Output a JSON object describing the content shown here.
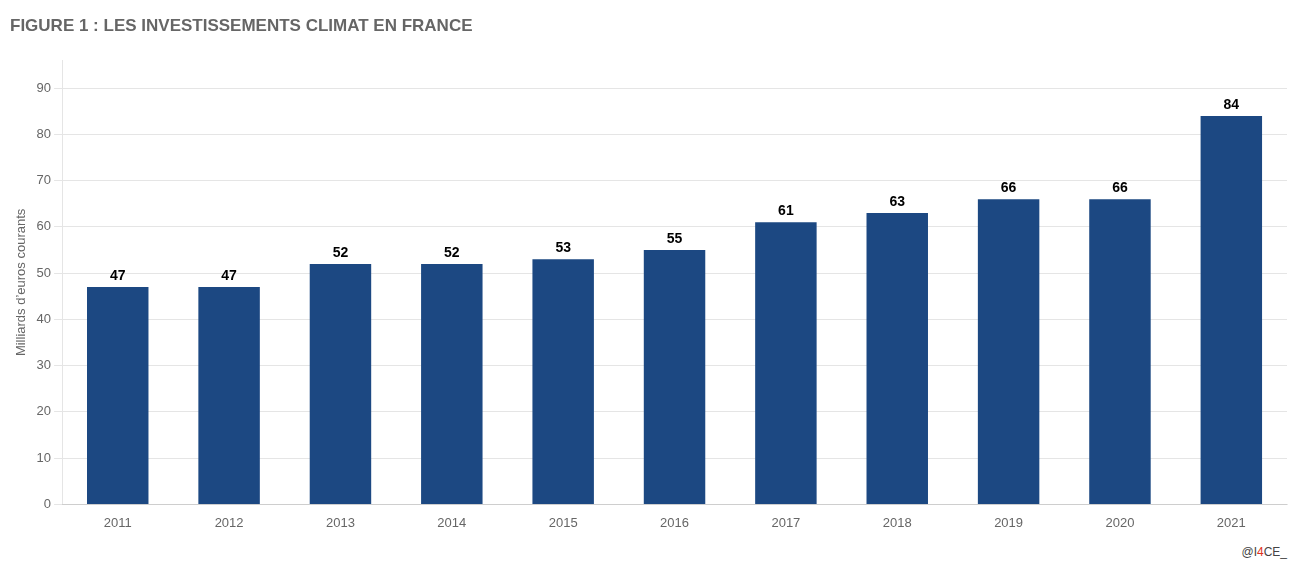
{
  "chart_data": {
    "type": "bar",
    "title": "FIGURE 1 : LES INVESTISSEMENTS CLIMAT EN FRANCE",
    "ylabel": "Milliards d’euros courants",
    "categories": [
      "2011",
      "2012",
      "2013",
      "2014",
      "2015",
      "2016",
      "2017",
      "2018",
      "2019",
      "2020",
      "2021"
    ],
    "values": [
      47,
      47,
      52,
      52,
      53,
      55,
      61,
      63,
      66,
      66,
      84
    ],
    "color": "#1c4882",
    "ylim": [
      0,
      96
    ],
    "yticks": [
      0,
      10,
      20,
      30,
      40,
      50,
      60,
      70,
      80,
      90
    ],
    "grid": true,
    "data_labels": true,
    "annotations": [
      {
        "text": "@I",
        "color": "#444444"
      },
      {
        "text": "4",
        "color": "#e03020"
      },
      {
        "text": "CE_",
        "color": "#444444"
      }
    ]
  }
}
